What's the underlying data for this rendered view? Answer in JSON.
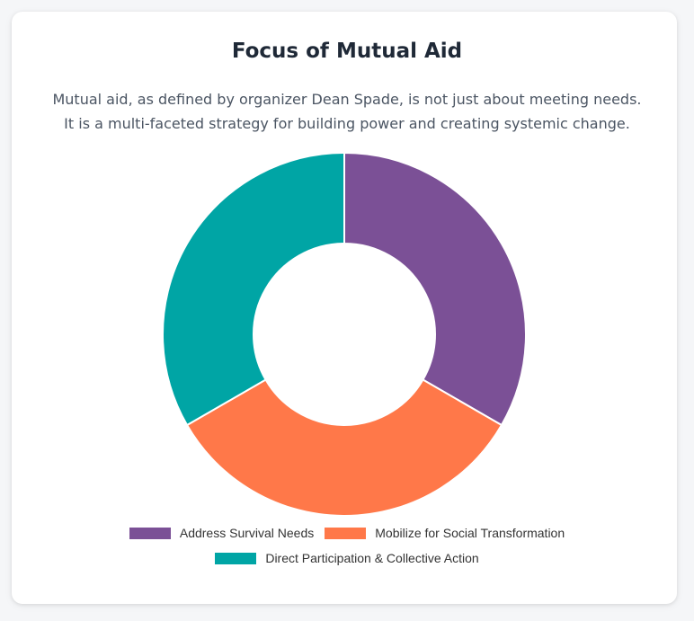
{
  "chart_data": {
    "type": "pie",
    "title": "Focus of Mutual Aid",
    "subtitle_lines": [
      "Mutual aid, as defined by organizer Dean Spade, is not just about meeting needs.",
      "It is a multi-faceted strategy for building power and creating systemic change."
    ],
    "categories": [
      "Address Survival Needs",
      "Mobilize for Social Transformation",
      "Direct Participation & Collective Action"
    ],
    "values": [
      33.3,
      33.3,
      33.3
    ],
    "colors": [
      "#7b5096",
      "#ff7849",
      "#00a5a5"
    ],
    "donut": true,
    "legend_position": "bottom"
  }
}
